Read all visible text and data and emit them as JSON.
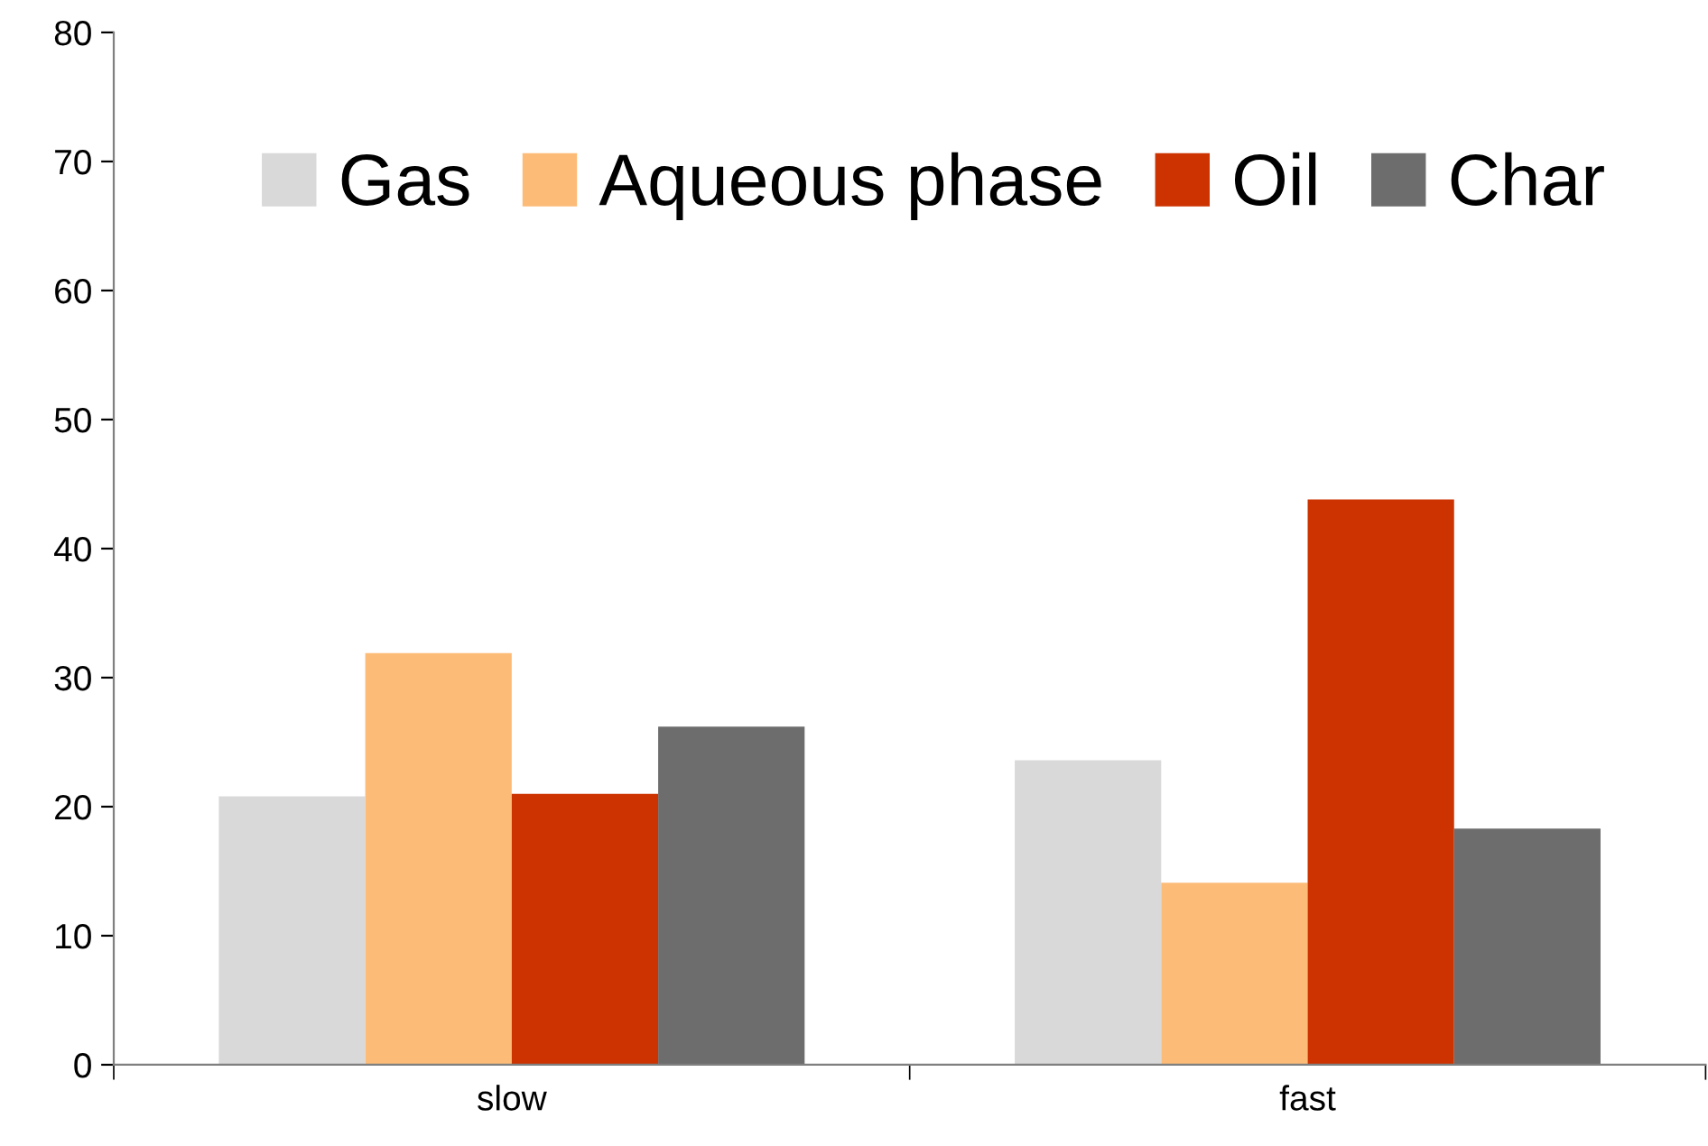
{
  "chart_data": {
    "type": "bar",
    "categories": [
      "slow",
      "fast"
    ],
    "series": [
      {
        "name": "Gas",
        "color": "#d9d9d9",
        "values": [
          20.8,
          23.6
        ]
      },
      {
        "name": "Aqueous phase",
        "color": "#fdbb78",
        "values": [
          31.9,
          14.1
        ]
      },
      {
        "name": "Oil",
        "color": "#cc3300",
        "values": [
          21.0,
          43.8
        ]
      },
      {
        "name": "Char",
        "color": "#6d6d6d",
        "values": [
          26.2,
          18.3
        ]
      }
    ],
    "ylim": [
      0,
      80
    ],
    "yticks": [
      0,
      10,
      20,
      30,
      40,
      50,
      60,
      70,
      80
    ],
    "grid": false,
    "legend": "top"
  }
}
